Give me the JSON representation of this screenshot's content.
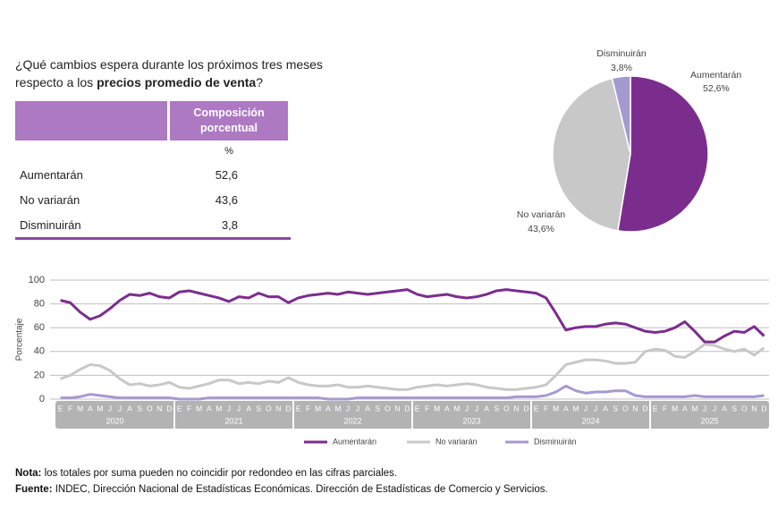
{
  "question": {
    "text_before": "¿Qué cambios espera durante los próximos tres meses respecto a los ",
    "text_bold": "precios promedio de venta",
    "text_after": "?"
  },
  "table": {
    "column_header": "Composición porcentual",
    "unit": "%",
    "rows": [
      [
        "Aumentarán",
        "52,6"
      ],
      [
        "No variarán",
        "43,6"
      ],
      [
        "Disminuirán",
        "3,8"
      ]
    ]
  },
  "chart_data": [
    {
      "type": "pie",
      "categories": [
        "Aumentarán",
        "No variarán",
        "Disminuirán"
      ],
      "values": [
        52.6,
        43.6,
        3.8
      ],
      "value_labels": [
        "52,6%",
        "43,6%",
        "3,8%"
      ],
      "colors": [
        "#7b2d8e",
        "#c8c8c8",
        "#a59ad0"
      ]
    },
    {
      "type": "line",
      "ylabel": "Porcentaje",
      "ylim": [
        0,
        100
      ],
      "yticks": [
        0,
        20,
        40,
        60,
        80,
        100
      ],
      "grid": true,
      "categories": [
        "E",
        "F",
        "M",
        "A",
        "M",
        "J",
        "J",
        "A",
        "S",
        "O",
        "N",
        "D",
        "E",
        "F",
        "M",
        "A",
        "M",
        "J",
        "J",
        "A",
        "S",
        "O",
        "N",
        "D",
        "E",
        "F",
        "M",
        "A",
        "M",
        "J",
        "J",
        "A",
        "S",
        "O",
        "N",
        "D",
        "E",
        "F",
        "M",
        "A",
        "M",
        "J",
        "J",
        "A",
        "S",
        "O",
        "N",
        "D",
        "E",
        "F",
        "M",
        "A",
        "M",
        "J",
        "J",
        "A",
        "S",
        "O",
        "N",
        "D",
        "E",
        "F",
        "M",
        "A",
        "M",
        "J",
        "J",
        "A",
        "S",
        "O",
        "N",
        "D"
      ],
      "years": [
        "2020",
        "2021",
        "2022",
        "2023",
        "2024",
        "2025"
      ],
      "series": [
        {
          "name": "Aumentarán",
          "color": "#7b2d8e",
          "values": [
            83,
            81,
            73,
            67,
            70,
            76,
            83,
            88,
            87,
            89,
            86,
            85,
            90,
            91,
            89,
            87,
            85,
            82,
            86,
            85,
            89,
            86,
            86,
            81,
            85,
            87,
            88,
            89,
            88,
            90,
            89,
            88,
            89,
            90,
            91,
            92,
            88,
            86,
            87,
            88,
            86,
            85,
            86,
            88,
            91,
            92,
            91,
            90,
            89,
            85,
            72,
            58,
            60,
            61,
            61,
            63,
            64,
            63,
            60,
            57,
            56,
            57,
            60,
            65,
            57,
            48,
            48,
            53,
            57,
            56,
            61,
            53
          ]
        },
        {
          "name": "No variarán",
          "color": "#c8c8c8",
          "values": [
            17,
            20,
            25,
            29,
            28,
            24,
            17,
            12,
            13,
            11,
            12,
            14,
            10,
            9,
            11,
            13,
            16,
            16,
            13,
            14,
            13,
            15,
            14,
            18,
            14,
            12,
            11,
            11,
            12,
            10,
            10,
            11,
            10,
            9,
            8,
            8,
            10,
            11,
            12,
            11,
            12,
            13,
            12,
            10,
            9,
            8,
            8,
            9,
            10,
            12,
            20,
            29,
            31,
            33,
            33,
            32,
            30,
            30,
            31,
            40,
            42,
            41,
            36,
            35,
            40,
            46,
            45,
            42,
            40,
            42,
            37,
            43
          ]
        },
        {
          "name": "Disminuirán",
          "color": "#a59ad0",
          "values": [
            1,
            1,
            2,
            4,
            3,
            2,
            1,
            1,
            1,
            1,
            1,
            1,
            0,
            0,
            0,
            1,
            1,
            1,
            1,
            1,
            1,
            1,
            1,
            1,
            1,
            1,
            1,
            0,
            0,
            0,
            1,
            1,
            1,
            1,
            1,
            1,
            1,
            1,
            1,
            1,
            1,
            1,
            1,
            1,
            1,
            1,
            2,
            2,
            2,
            3,
            6,
            11,
            7,
            5,
            6,
            6,
            7,
            7,
            3,
            2,
            2,
            2,
            2,
            2,
            3,
            2,
            2,
            2,
            2,
            2,
            2,
            3
          ]
        }
      ]
    }
  ],
  "notes": {
    "nota_label": "Nota:",
    "nota_text": " los totales por suma pueden no coincidir por redondeo en las cifras parciales.",
    "fuente_label": "Fuente:",
    "fuente_text": " INDEC, Dirección Nacional de Estadísticas Económicas. Dirección de Estadísticas de Comercio y Servicios."
  }
}
